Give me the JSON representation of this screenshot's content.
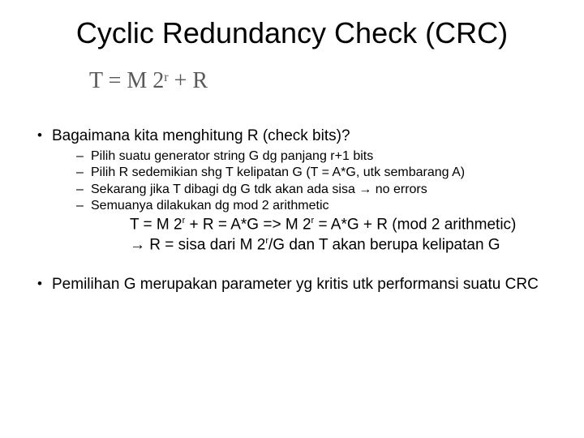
{
  "title": "Cyclic Redundancy Check (CRC)",
  "formula": {
    "pre": "T = M 2",
    "exp": "r",
    "post": " + R"
  },
  "b1": "Bagaimana kita menghitung R (check bits)?",
  "s1": "Pilih suatu generator string G dg panjang r+1 bits",
  "s2": "Pilih R sedemikian shg T kelipatan G (T = A*G, utk sembarang A)",
  "s3": "Sekarang jika T dibagi dg G tdk akan ada sisa → no errors",
  "s4": "Semuanya dilakukan dg mod 2 arithmetic",
  "m1a": "T = M 2",
  "m1exp": "r",
  "m1b": " + R = A*G => M 2",
  "m1exp2": "r",
  "m1c": " = A*G + R (mod 2 arithmetic)",
  "m2a": "→ R = sisa dari M 2",
  "m2exp": "r",
  "m2b": "/G dan T akan berupa kelipatan G",
  "b2": "Pemilihan G merupakan parameter yg kritis utk performansi suatu CRC"
}
